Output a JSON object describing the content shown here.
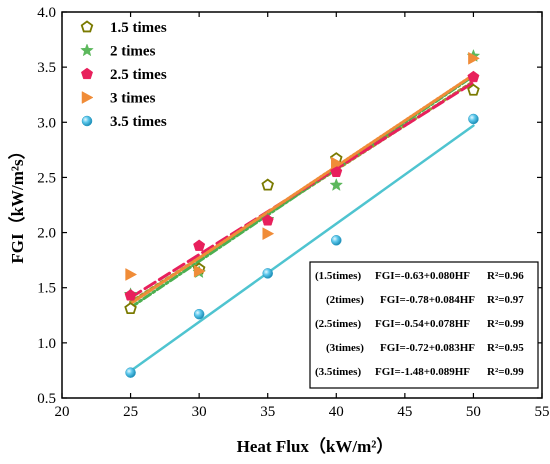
{
  "chart_data": {
    "type": "scatter",
    "xlabel": "Heat Flux（kW/m²）",
    "ylabel": "FGI（kW/m²s）",
    "xlim": [
      20,
      55
    ],
    "ylim": [
      0.5,
      4.0
    ],
    "xticks": [
      "20",
      "25",
      "30",
      "35",
      "40",
      "45",
      "50",
      "55"
    ],
    "yticks": [
      "0.5",
      "1.0",
      "1.5",
      "2.0",
      "2.5",
      "3.0",
      "3.5",
      "4.0"
    ],
    "x": [
      25,
      30,
      35,
      40,
      50
    ],
    "legend_position": "top-left",
    "series": [
      {
        "name": "1.5 times",
        "marker": "pentagon-hollow",
        "color": "#7a7a00",
        "values": [
          1.31,
          1.67,
          2.43,
          2.67,
          3.29
        ],
        "fit": {
          "intercept": -0.63,
          "slope": 0.08,
          "color": "#9a9a30",
          "dash": "3,3"
        }
      },
      {
        "name": "2  times",
        "marker": "star",
        "color": "#5cb85c",
        "values": [
          1.44,
          1.64,
          2.12,
          2.43,
          3.6
        ],
        "fit": {
          "intercept": -0.78,
          "slope": 0.084,
          "color": "#4caf50",
          "dash": "8,3,2,3"
        }
      },
      {
        "name": "2.5 times",
        "marker": "pentagon",
        "color": "#e8205c",
        "values": [
          1.43,
          1.88,
          2.11,
          2.55,
          3.41
        ],
        "fit": {
          "intercept": -0.54,
          "slope": 0.078,
          "color": "#e8205c",
          "dash": "12,5"
        }
      },
      {
        "name": "3  times",
        "marker": "triangle-right",
        "color": "#f08c38",
        "values": [
          1.62,
          1.65,
          1.99,
          2.63,
          3.58
        ],
        "fit": {
          "intercept": -0.72,
          "slope": 0.083,
          "color": "#f08c38",
          "dash": "2,2"
        }
      },
      {
        "name": "3.5 times",
        "marker": "sphere",
        "color": "#3ab4d8",
        "values": [
          0.73,
          1.26,
          1.63,
          1.93,
          3.03
        ],
        "fit": {
          "intercept": -1.48,
          "slope": 0.089,
          "color": "#4fc4d0",
          "dash": ""
        }
      }
    ],
    "equations": [
      {
        "label": "(1.5times)",
        "formula": "FGI=-0.63+0.080HF",
        "r2": "R²=0.96"
      },
      {
        "label": "(2times)",
        "formula": "FGI=-0.78+0.084HF",
        "r2": "R²=0.97"
      },
      {
        "label": "(2.5times)",
        "formula": "FGI=-0.54+0.078HF",
        "r2": "R²=0.99"
      },
      {
        "label": "(3times)",
        "formula": "FGI=-0.72+0.083HF",
        "r2": "R²=0.95"
      },
      {
        "label": "(3.5times)",
        "formula": "FGI=-1.48+0.089HF",
        "r2": "R²=0.99"
      }
    ]
  }
}
